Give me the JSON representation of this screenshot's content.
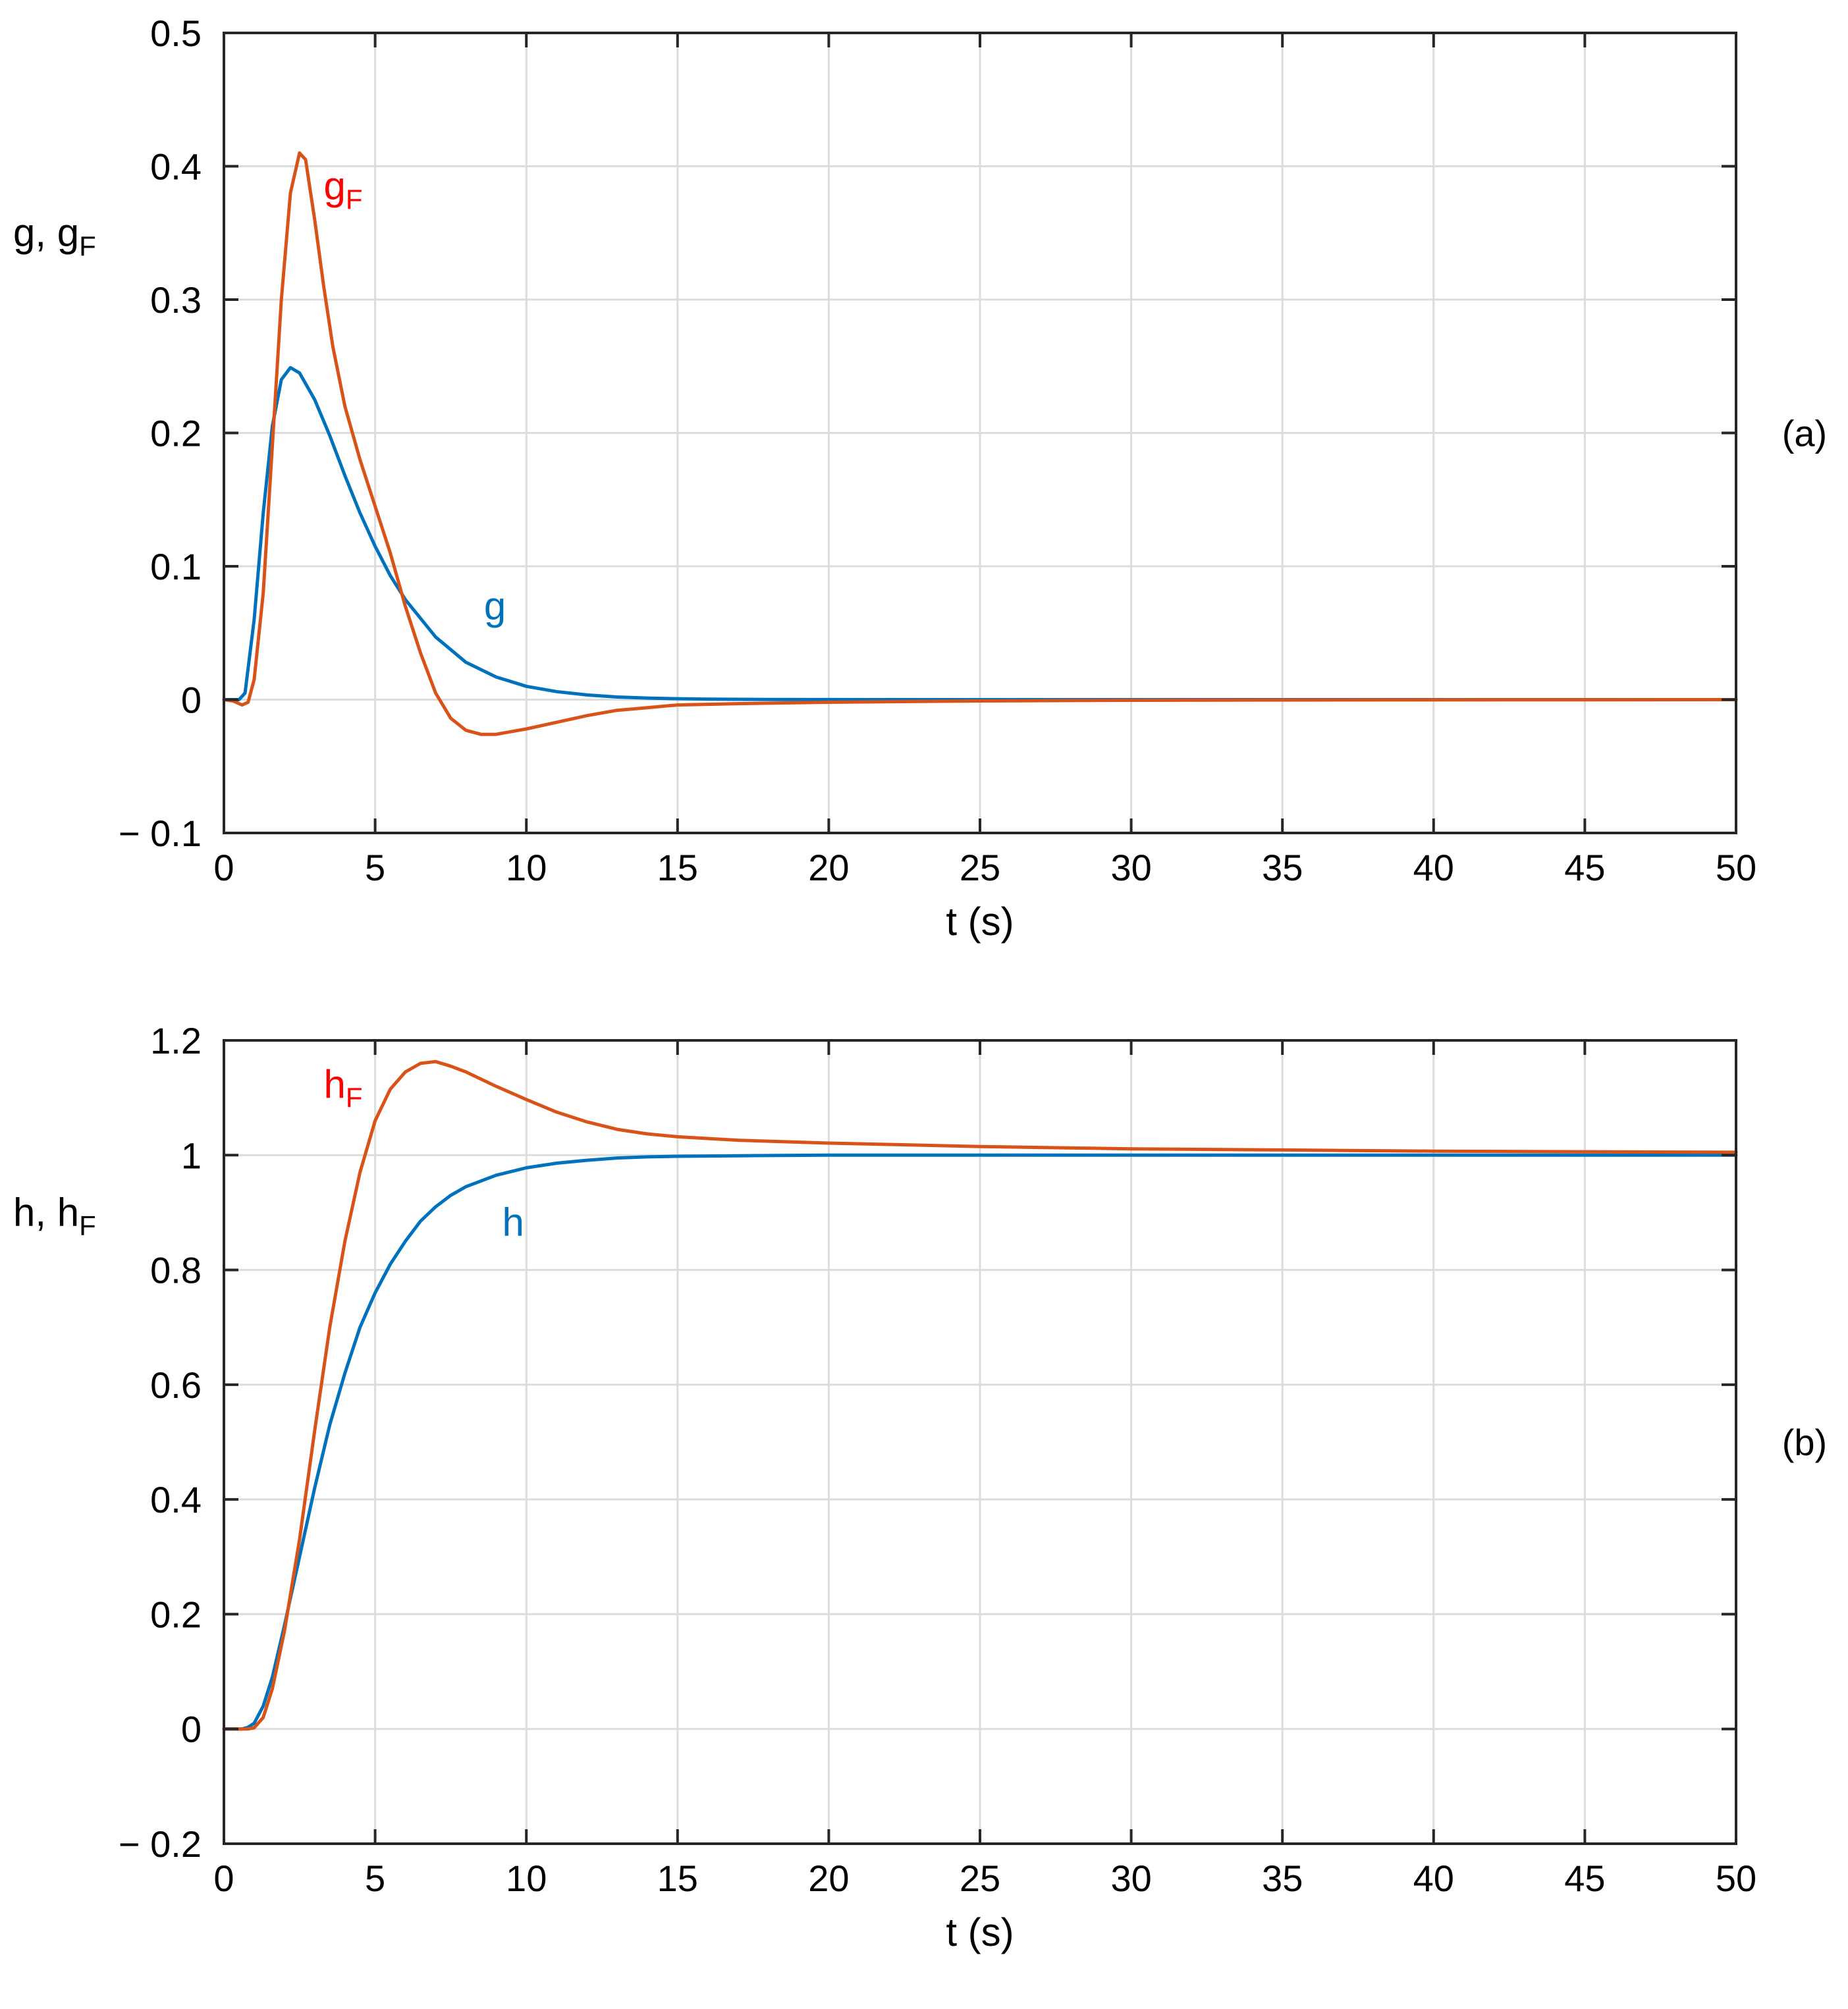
{
  "colors": {
    "blue": "#0072BD",
    "orange": "#D95319",
    "red_label": "#FF0000",
    "grid": "#dcdcdc",
    "frame": "#262626"
  },
  "chart_data": [
    {
      "id": "a",
      "type": "line",
      "panel_label": "(a)",
      "title": "",
      "xlabel": "t (s)",
      "ylabel_base": "g, g",
      "ylabel_sub": "F",
      "xlim": [
        0,
        50
      ],
      "ylim": [
        -0.1,
        0.5
      ],
      "grid": true,
      "xticks": [
        0,
        5,
        10,
        15,
        20,
        25,
        30,
        35,
        40,
        45,
        50
      ],
      "xtick_labels": [
        "0",
        "5",
        "10",
        "15",
        "20",
        "25",
        "30",
        "35",
        "40",
        "45",
        "50"
      ],
      "yticks": [
        -0.1,
        0,
        0.1,
        0.2,
        0.3,
        0.4,
        0.5
      ],
      "ytick_labels": [
        "− 0.1",
        "0",
        "0.1",
        "0.2",
        "0.3",
        "0.4",
        "0.5"
      ],
      "series": [
        {
          "name": "g",
          "label_base": "g",
          "label_sub": "",
          "label_anchor": [
            8.6,
            0.06
          ],
          "color": "#0072BD",
          "label_color": "#0072BD",
          "x": [
            0,
            0.3,
            0.5,
            0.7,
            1.0,
            1.3,
            1.6,
            1.9,
            2.2,
            2.5,
            3.0,
            3.5,
            4.0,
            4.5,
            5.0,
            5.5,
            6.0,
            7.0,
            8.0,
            9.0,
            10.0,
            11.0,
            12.0,
            13.0,
            14.0,
            15.0,
            16.0,
            18.0,
            20.0,
            25.0,
            30.0,
            35.0,
            40.0,
            45.0,
            50.0
          ],
          "y": [
            0,
            0,
            0.0,
            0.005,
            0.06,
            0.14,
            0.205,
            0.24,
            0.249,
            0.245,
            0.225,
            0.198,
            0.168,
            0.14,
            0.115,
            0.093,
            0.075,
            0.047,
            0.028,
            0.017,
            0.01,
            0.006,
            0.0035,
            0.002,
            0.0012,
            0.0007,
            0.0004,
            0.0001,
            4e-05,
            0,
            0,
            0,
            0,
            0,
            0
          ]
        },
        {
          "name": "gF",
          "label_base": "g",
          "label_sub": "F",
          "label_anchor": [
            3.3,
            0.375
          ],
          "color": "#D95319",
          "label_color": "#FF0000",
          "x": [
            0,
            0.3,
            0.6,
            0.8,
            1.0,
            1.3,
            1.6,
            1.9,
            2.2,
            2.5,
            2.7,
            3.0,
            3.3,
            3.6,
            4.0,
            4.5,
            5.0,
            5.5,
            6.0,
            6.5,
            7.0,
            7.5,
            8.0,
            8.5,
            9.0,
            9.5,
            10.0,
            11.0,
            12.0,
            13.0,
            14.0,
            15.0,
            17.0,
            20.0,
            25.0,
            30.0,
            35.0,
            40.0,
            45.0,
            50.0
          ],
          "y": [
            0,
            -0.001,
            -0.004,
            -0.002,
            0.015,
            0.08,
            0.19,
            0.3,
            0.38,
            0.41,
            0.405,
            0.36,
            0.31,
            0.265,
            0.22,
            0.18,
            0.145,
            0.11,
            0.07,
            0.035,
            0.005,
            -0.014,
            -0.023,
            -0.026,
            -0.026,
            -0.024,
            -0.022,
            -0.017,
            -0.012,
            -0.008,
            -0.006,
            -0.004,
            -0.003,
            -0.002,
            -0.001,
            -0.0005,
            -0.0003,
            -0.0002,
            -0.0001,
            0
          ]
        }
      ]
    },
    {
      "id": "b",
      "type": "line",
      "panel_label": "(b)",
      "title": "",
      "xlabel": "t (s)",
      "ylabel_base": "h, h",
      "ylabel_sub": "F",
      "xlim": [
        0,
        50
      ],
      "ylim": [
        -0.2,
        1.2
      ],
      "grid": true,
      "xticks": [
        0,
        5,
        10,
        15,
        20,
        25,
        30,
        35,
        40,
        45,
        50
      ],
      "xtick_labels": [
        "0",
        "5",
        "10",
        "15",
        "20",
        "25",
        "30",
        "35",
        "40",
        "45",
        "50"
      ],
      "yticks": [
        -0.2,
        0,
        0.2,
        0.4,
        0.6,
        0.8,
        1.0,
        1.2
      ],
      "ytick_labels": [
        "− 0.2",
        "0",
        "0.2",
        "0.4",
        "0.6",
        "0.8",
        "1",
        "1.2"
      ],
      "series": [
        {
          "name": "h",
          "label_base": "h",
          "label_sub": "",
          "label_anchor": [
            9.2,
            0.86
          ],
          "color": "#0072BD",
          "label_color": "#0072BD",
          "x": [
            0,
            0.4,
            0.6,
            0.8,
            1.0,
            1.3,
            1.6,
            2.0,
            2.5,
            3.0,
            3.5,
            4.0,
            4.5,
            5.0,
            5.5,
            6.0,
            6.5,
            7.0,
            7.5,
            8.0,
            9.0,
            10.0,
            11.0,
            12.0,
            13.0,
            14.0,
            15.0,
            17.0,
            20.0,
            25.0,
            30.0,
            35.0,
            40.0,
            45.0,
            50.0
          ],
          "y": [
            0,
            0,
            0.0,
            0.003,
            0.01,
            0.04,
            0.09,
            0.18,
            0.3,
            0.42,
            0.53,
            0.62,
            0.7,
            0.76,
            0.81,
            0.85,
            0.885,
            0.91,
            0.93,
            0.945,
            0.965,
            0.978,
            0.986,
            0.991,
            0.995,
            0.997,
            0.998,
            0.999,
            1.0,
            1.0,
            1.0,
            1.0,
            1.0,
            1.0,
            1.0
          ]
        },
        {
          "name": "hF",
          "label_base": "h",
          "label_sub": "F",
          "label_anchor": [
            3.3,
            1.1
          ],
          "color": "#D95319",
          "label_color": "#FF0000",
          "x": [
            0,
            0.5,
            0.8,
            1.0,
            1.3,
            1.6,
            2.0,
            2.5,
            3.0,
            3.5,
            4.0,
            4.5,
            5.0,
            5.5,
            6.0,
            6.5,
            7.0,
            7.5,
            8.0,
            9.0,
            10.0,
            11.0,
            12.0,
            13.0,
            14.0,
            15.0,
            17.0,
            20.0,
            25.0,
            30.0,
            35.0,
            40.0,
            45.0,
            50.0
          ],
          "y": [
            0,
            0,
            0,
            0.002,
            0.02,
            0.07,
            0.17,
            0.33,
            0.52,
            0.7,
            0.85,
            0.97,
            1.06,
            1.115,
            1.145,
            1.16,
            1.163,
            1.155,
            1.145,
            1.12,
            1.097,
            1.075,
            1.058,
            1.045,
            1.037,
            1.032,
            1.026,
            1.021,
            1.015,
            1.011,
            1.009,
            1.007,
            1.006,
            1.005
          ]
        }
      ]
    }
  ]
}
